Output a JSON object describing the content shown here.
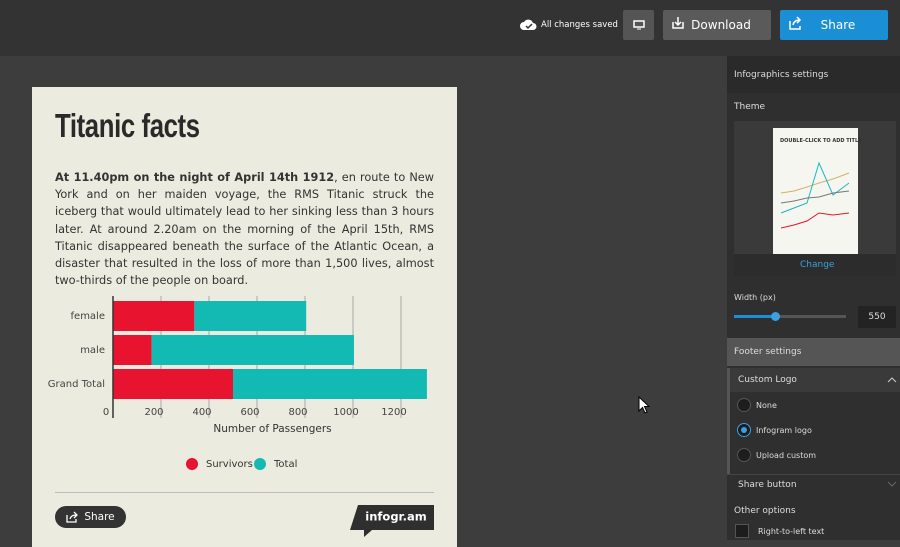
{
  "toolbar": {
    "status": "All changes saved",
    "download": "Download",
    "share": "Share"
  },
  "infographic": {
    "title": "Titanic facts",
    "intro_bold": "At 11.40pm on the night of April 14th 1912",
    "intro_text": ", en route to New York and on her maiden voyage, the RMS Titanic struck the iceberg that would ultimately lead to her sinking less than 3 hours later. At around 2.20am on the morning of the April 15th, RMS Titanic disappeared beneath the surface of the Atlantic Ocean, a disaster that resulted in the loss of more than 1,500 lives, almost two-thirds of the people on board.",
    "share": "Share",
    "brand": "infogr.am"
  },
  "chart_data": {
    "type": "bar",
    "orientation": "horizontal",
    "stacked": true,
    "categories": [
      "female",
      "male",
      "Grand Total"
    ],
    "series": [
      {
        "name": "Survivors",
        "color": "#e8132f",
        "values": [
          339,
          161,
          500
        ]
      },
      {
        "name": "Total",
        "color": "#13bab4",
        "values": [
          466,
          843,
          808
        ]
      }
    ],
    "x_label": "Number of Passengers",
    "xlim": [
      0,
      1350
    ],
    "xticks": [
      0,
      200,
      400,
      600,
      800,
      1000,
      1200
    ],
    "grid": true,
    "legend": "bottom"
  },
  "settings": {
    "title": "Infographics settings",
    "theme": "Theme",
    "thumbnail_title": "DOUBLE-CLICK TO ADD TITLE",
    "theme_action": "Change",
    "width_label": "Width (px)",
    "width_value": "550",
    "footer": "Footer settings",
    "custom_logo": "Custom Logo",
    "logo_options": [
      "None",
      "Infogram logo",
      "Upload custom"
    ],
    "selected_logo": 1,
    "share_button": "Share button",
    "other_options": "Other options",
    "rtl": "Right-to-left text"
  }
}
